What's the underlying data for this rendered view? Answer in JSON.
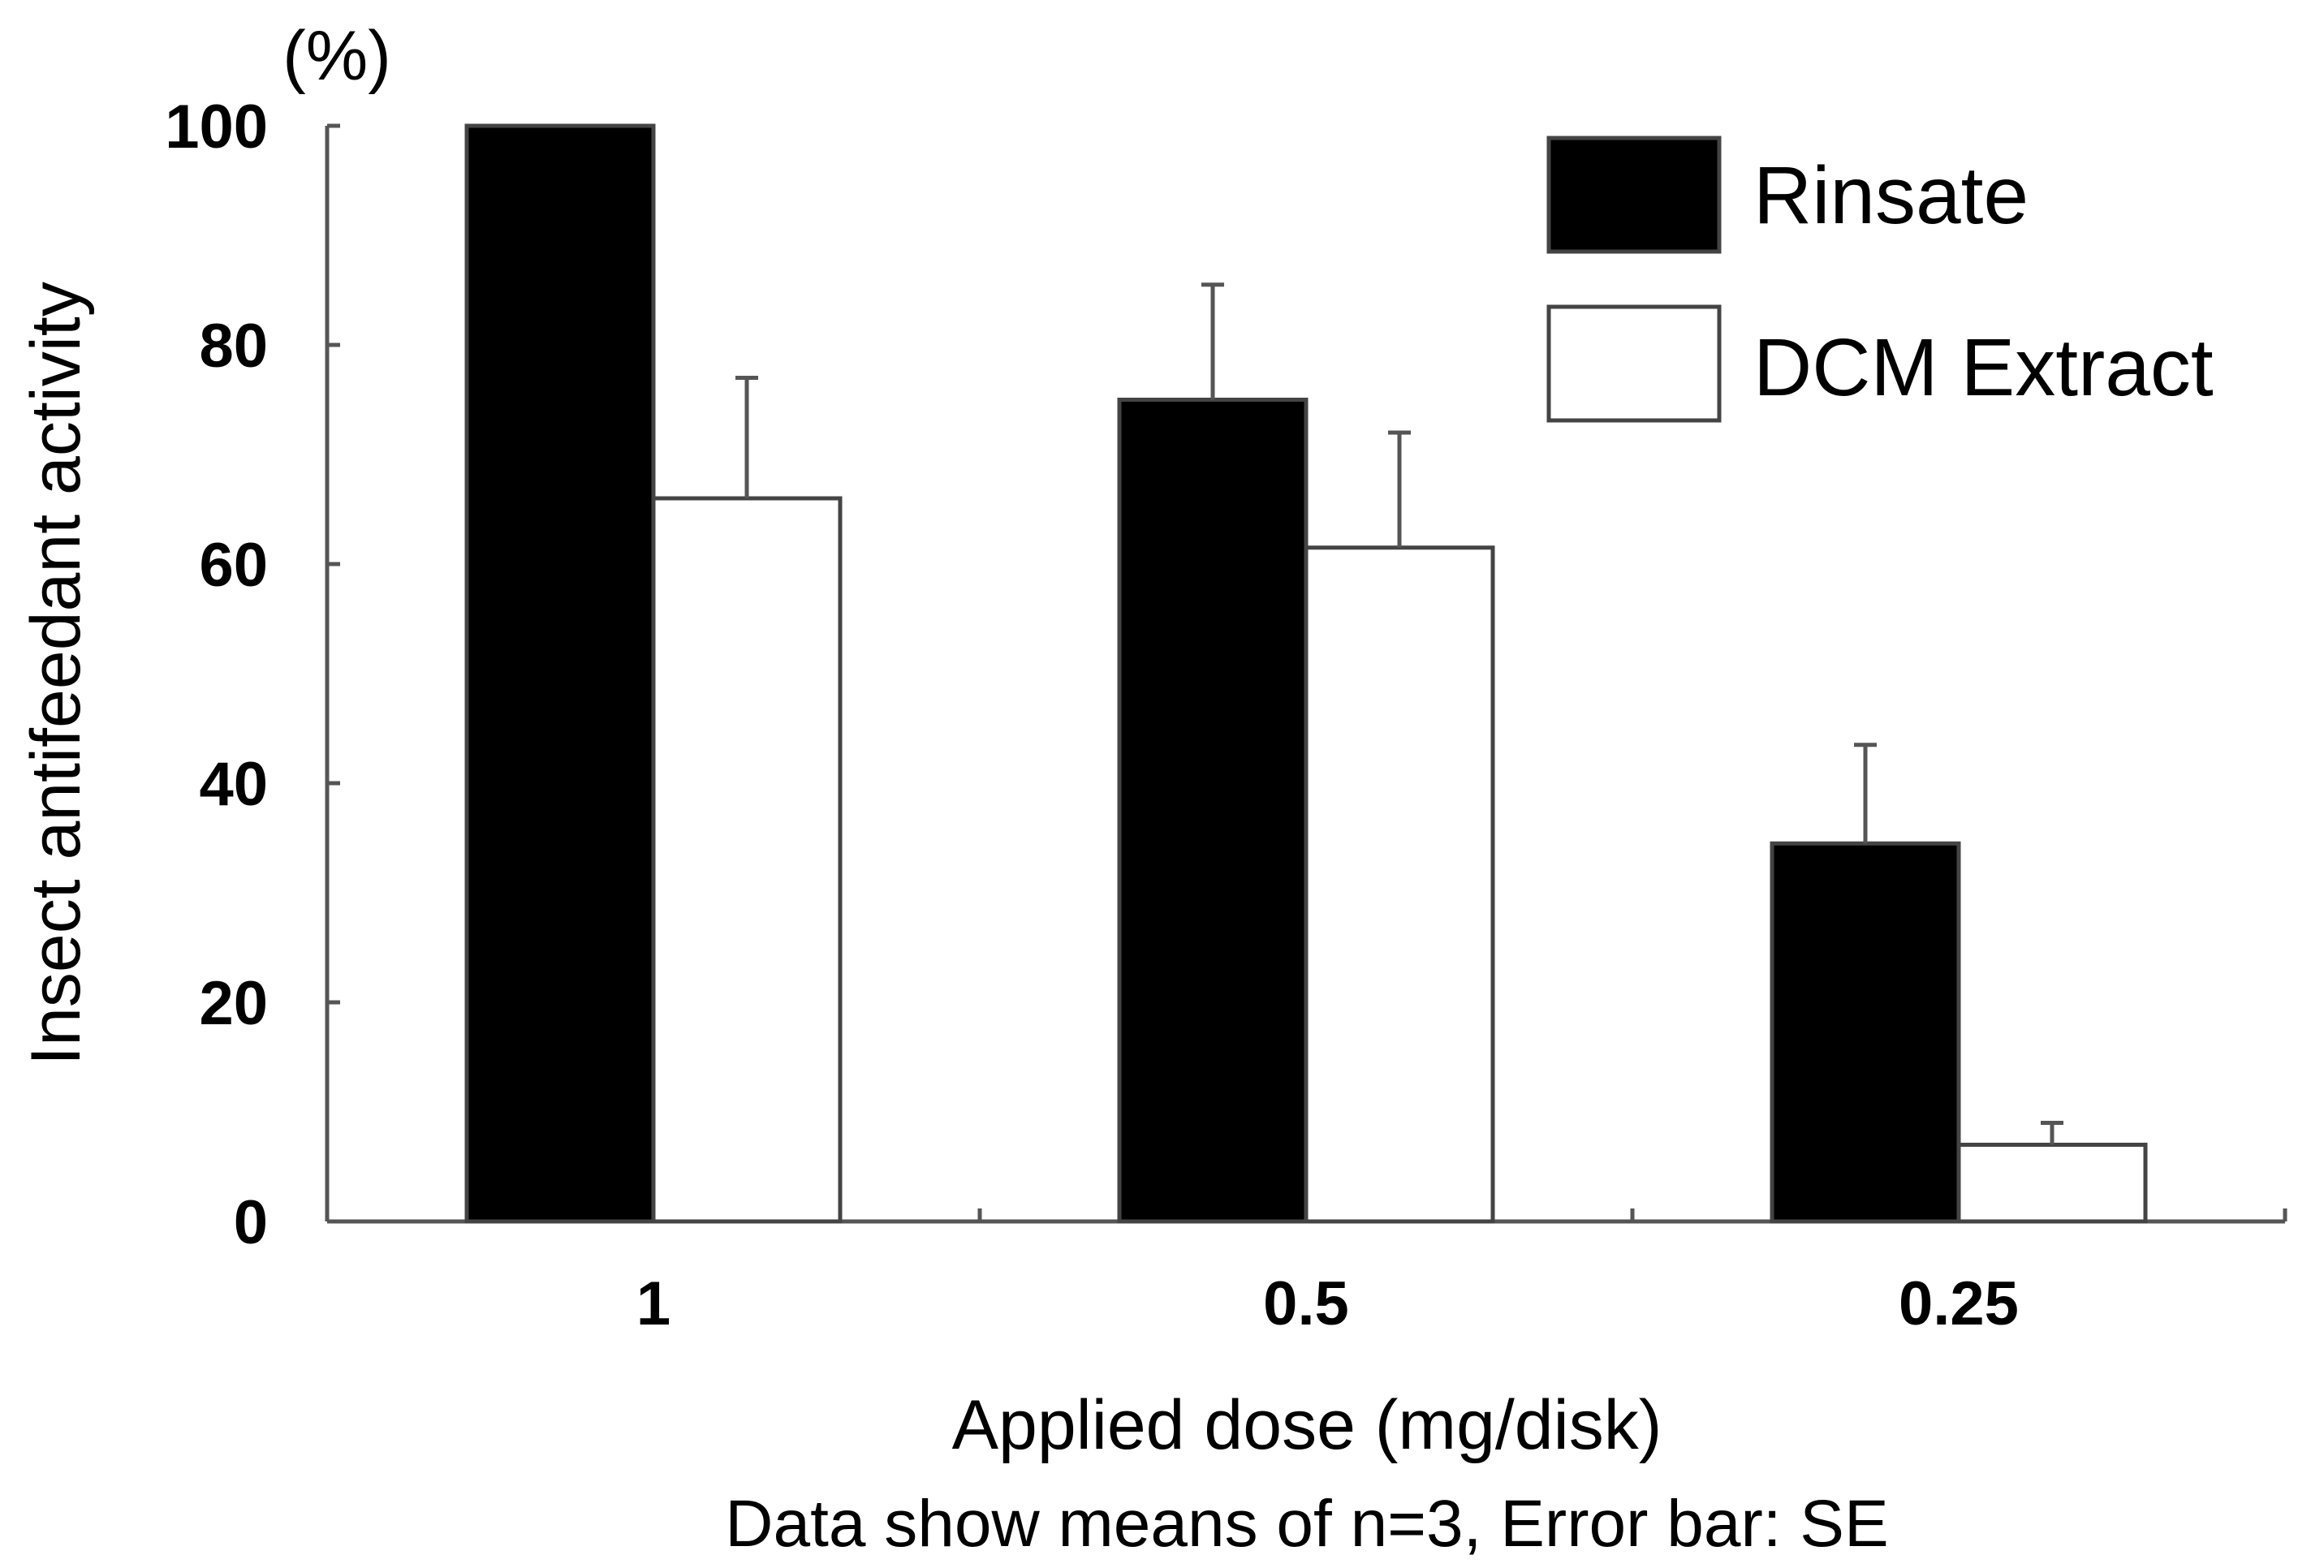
{
  "chart_data": {
    "type": "bar",
    "title": "",
    "unit_label": "(%)",
    "xlabel": "Applied dose (mg/disk)",
    "ylabel": "Insect antifeedant activity",
    "note": "Data show means of n=3, Error bar: SE",
    "categories": [
      "1",
      "0.5",
      "0.25"
    ],
    "series": [
      {
        "name": "Rinsate",
        "values": [
          100,
          75,
          34.5
        ],
        "errors": [
          0,
          10.5,
          9
        ]
      },
      {
        "name": "DCM Extract",
        "values": [
          66,
          61.5,
          7
        ],
        "errors": [
          11,
          10.5,
          2
        ]
      }
    ],
    "ylim": [
      0,
      100
    ],
    "yticks": [
      0,
      20,
      40,
      60,
      80,
      100
    ],
    "legend_position": "top-right",
    "colors": {
      "Rinsate": "#000000",
      "DCM Extract": "#ffffff",
      "axis": "#555555",
      "outline": "#444444"
    }
  }
}
